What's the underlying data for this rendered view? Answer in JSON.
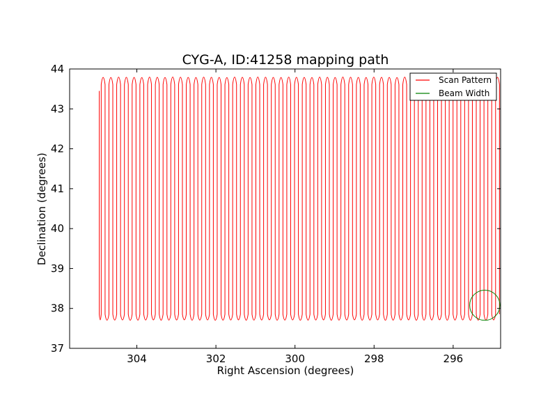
{
  "chart_data": {
    "type": "line",
    "title": "CYG-A, ID:41258 mapping path",
    "xlabel": "Right Ascension (degrees)",
    "ylabel": "Declination (degrees)",
    "xlim": [
      305.7,
      294.8
    ],
    "ylim": [
      37,
      44
    ],
    "x_ticks": [
      "304",
      "302",
      "300",
      "298",
      "296"
    ],
    "x_tick_values": [
      304,
      302,
      300,
      298,
      296
    ],
    "y_ticks": [
      "37",
      "38",
      "39",
      "40",
      "41",
      "42",
      "43",
      "44"
    ],
    "y_tick_values": [
      37,
      38,
      39,
      40,
      41,
      42,
      43,
      44
    ],
    "grid": false,
    "legend_position": "top-right",
    "series": [
      {
        "name": "Scan Pattern",
        "color": "#ff0000",
        "style": "raster zigzag",
        "ra_start": 304.95,
        "ra_end": 294.8,
        "dec_low": 37.75,
        "dec_high": 43.75,
        "first_point": [
          304.95,
          43.45
        ],
        "legs": 104
      },
      {
        "name": "Beam Width",
        "color": "#008000",
        "style": "circle",
        "center": [
          295.2,
          38.08
        ],
        "radius_deg": 0.38
      }
    ]
  }
}
